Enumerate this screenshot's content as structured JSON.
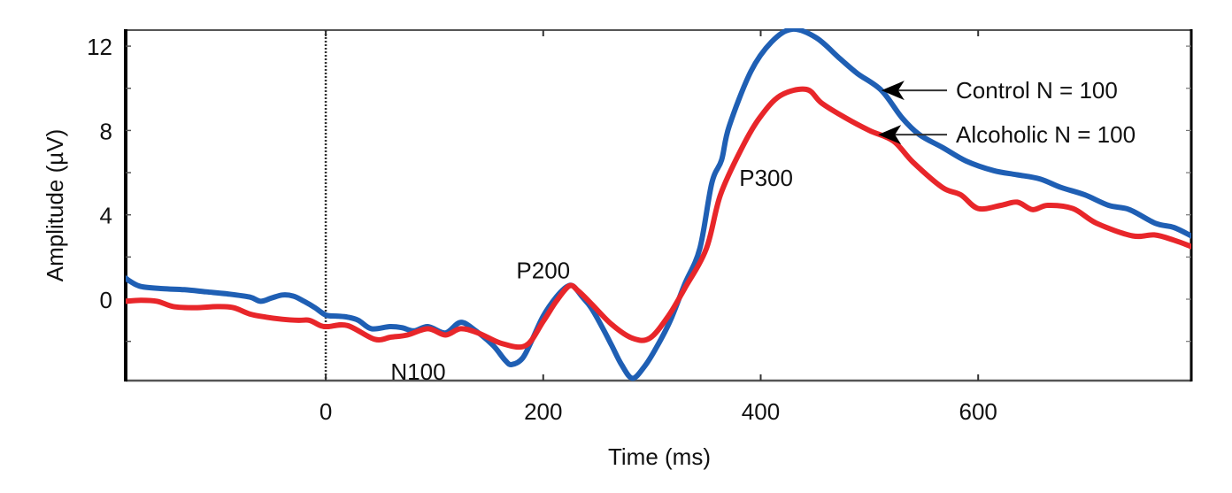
{
  "chart_data": {
    "type": "line",
    "title": "",
    "xlabel": "Time (ms)",
    "ylabel": "Amplitude (µV)",
    "xlim": [
      -184,
      796
    ],
    "ylim": [
      -3.86,
      12.76
    ],
    "xticks": [
      0,
      200,
      400,
      600
    ],
    "xtick_labels": [
      "0",
      "200",
      "400",
      "600"
    ],
    "yticks_major": [
      0,
      4,
      8,
      12
    ],
    "ytick_labels": [
      "0",
      "4",
      "8",
      "12"
    ],
    "yticks_minor": [
      -2,
      2,
      6,
      10
    ],
    "grid": false,
    "stimulus_line_x": 0,
    "legend_placement": "top-right (arrow annotations)",
    "series": [
      {
        "name": "Control N = 100",
        "color": "#1f5fb4",
        "x": [
          -184,
          -180,
          -170,
          -150,
          -130,
          -110,
          -90,
          -70,
          -60,
          -50,
          -40,
          -30,
          -20,
          -10,
          0,
          10,
          20,
          30,
          42,
          59,
          70,
          81,
          94,
          110,
          124,
          138,
          154,
          165,
          171,
          181,
          190,
          200,
          212,
          222,
          228,
          236,
          244,
          255,
          263,
          272,
          282,
          293,
          304,
          317,
          330,
          344,
          355,
          364,
          371,
          391,
          410,
          429,
          451,
          473,
          489,
          511,
          530,
          546,
          567,
          589,
          614,
          636,
          657,
          676,
          698,
          720,
          739,
          763,
          780,
          796
        ],
        "values": [
          1.0,
          0.85,
          0.6,
          0.5,
          0.45,
          0.35,
          0.25,
          0.1,
          -0.1,
          0.05,
          0.2,
          0.15,
          -0.1,
          -0.4,
          -0.75,
          -0.8,
          -0.85,
          -1.0,
          -1.4,
          -1.3,
          -1.35,
          -1.5,
          -1.3,
          -1.6,
          -1.1,
          -1.5,
          -2.2,
          -2.9,
          -3.1,
          -2.8,
          -1.9,
          -0.8,
          0.1,
          0.6,
          0.6,
          0.1,
          -0.4,
          -1.4,
          -2.2,
          -3.1,
          -3.75,
          -3.2,
          -2.3,
          -1.0,
          0.7,
          2.4,
          5.5,
          6.6,
          8.2,
          10.8,
          12.2,
          12.8,
          12.4,
          11.4,
          10.7,
          9.9,
          8.6,
          7.8,
          7.2,
          6.55,
          6.1,
          5.9,
          5.7,
          5.3,
          4.95,
          4.45,
          4.25,
          3.6,
          3.4,
          3.0
        ]
      },
      {
        "name": "Alcoholic N = 100",
        "color": "#e8262a",
        "x": [
          -184,
          -170,
          -155,
          -140,
          -120,
          -100,
          -85,
          -70,
          -55,
          -40,
          -25,
          -15,
          -5,
          2,
          20,
          45,
          60,
          75,
          94,
          110,
          124,
          140,
          162,
          184,
          200,
          212,
          224,
          232,
          244,
          263,
          282,
          298,
          315,
          330,
          350,
          363,
          383,
          399,
          418,
          442,
          456,
          478,
          500,
          522,
          540,
          567,
          584,
          600,
          621,
          636,
          650,
          664,
          687,
          709,
          742,
          762,
          780,
          796
        ],
        "values": [
          -0.1,
          -0.05,
          -0.1,
          -0.35,
          -0.4,
          -0.35,
          -0.4,
          -0.7,
          -0.85,
          -0.95,
          -1.0,
          -1.0,
          -1.25,
          -1.3,
          -1.25,
          -1.9,
          -1.8,
          -1.7,
          -1.4,
          -1.7,
          -1.4,
          -1.6,
          -2.1,
          -2.2,
          -1.05,
          -0.1,
          0.63,
          0.4,
          -0.2,
          -1.2,
          -1.85,
          -1.85,
          -0.8,
          0.5,
          2.4,
          4.95,
          7.2,
          8.6,
          9.65,
          9.95,
          9.3,
          8.6,
          8.0,
          7.5,
          6.5,
          5.3,
          4.95,
          4.3,
          4.45,
          4.6,
          4.25,
          4.45,
          4.3,
          3.6,
          3.0,
          3.05,
          2.8,
          2.5
        ]
      }
    ],
    "annotations": [
      {
        "text": "N100",
        "x": 85,
        "y": -3.4
      },
      {
        "text": "P200",
        "x": 200,
        "y": 1.4
      },
      {
        "text": "P300",
        "x": 405,
        "y": 5.8
      }
    ],
    "legend_arrows": [
      {
        "label": "Control N = 100",
        "series": 0,
        "target_x": 511,
        "target_y": 9.9
      },
      {
        "label": "Alcoholic N = 100",
        "series": 1,
        "target_x": 508,
        "target_y": 7.8
      }
    ]
  }
}
